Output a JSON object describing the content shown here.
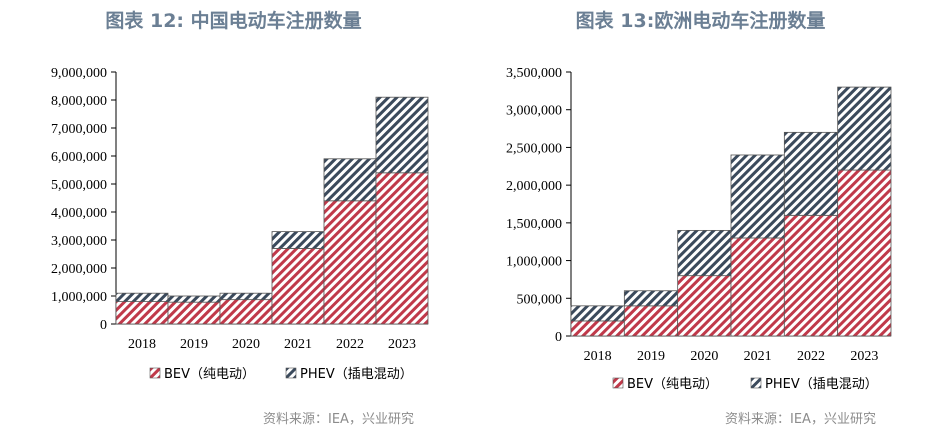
{
  "chart_data": [
    {
      "type": "bar",
      "stacked": true,
      "title": "图表 12: 中国电动车注册数量",
      "categories": [
        "2018",
        "2019",
        "2020",
        "2021",
        "2022",
        "2023"
      ],
      "series": [
        {
          "name": "BEV（纯电动）",
          "values": [
            800000,
            780000,
            870000,
            2700000,
            4400000,
            5400000
          ],
          "color": "#c0394a",
          "pattern": "diagonal-right"
        },
        {
          "name": "PHEV（插电混动）",
          "values": [
            300000,
            220000,
            230000,
            600000,
            1500000,
            2700000
          ],
          "color": "#3b4a5c",
          "pattern": "diagonal-right"
        }
      ],
      "ylim": [
        0,
        9000000
      ],
      "yticks": [
        0,
        1000000,
        2000000,
        3000000,
        4000000,
        5000000,
        6000000,
        7000000,
        8000000,
        9000000
      ],
      "ytick_labels": [
        "0",
        "1,000,000",
        "2,000,000",
        "3,000,000",
        "4,000,000",
        "5,000,000",
        "6,000,000",
        "7,000,000",
        "8,000,000",
        "9,000,000"
      ],
      "xlabel": "",
      "ylabel": "",
      "legend_position": "bottom",
      "grid": false,
      "source": "资料来源：IEA，兴业研究"
    },
    {
      "type": "bar",
      "stacked": true,
      "title": "图表 13:欧洲电动车注册数量",
      "categories": [
        "2018",
        "2019",
        "2020",
        "2021",
        "2022",
        "2023"
      ],
      "series": [
        {
          "name": "BEV（纯电动）",
          "values": [
            200000,
            400000,
            800000,
            1300000,
            1600000,
            2200000
          ],
          "color": "#c0394a",
          "pattern": "diagonal-right"
        },
        {
          "name": "PHEV（插电混动）",
          "values": [
            200000,
            200000,
            600000,
            1100000,
            1100000,
            1100000
          ],
          "color": "#3b4a5c",
          "pattern": "diagonal-right"
        }
      ],
      "ylim": [
        0,
        3500000
      ],
      "yticks": [
        0,
        500000,
        1000000,
        1500000,
        2000000,
        2500000,
        3000000,
        3500000
      ],
      "ytick_labels": [
        "0",
        "500,000",
        "1,000,000",
        "1,500,000",
        "2,000,000",
        "2,500,000",
        "3,000,000",
        "3,500,000"
      ],
      "xlabel": "",
      "ylabel": "",
      "legend_position": "bottom",
      "grid": false,
      "source": "资料来源：IEA，兴业研究"
    }
  ]
}
